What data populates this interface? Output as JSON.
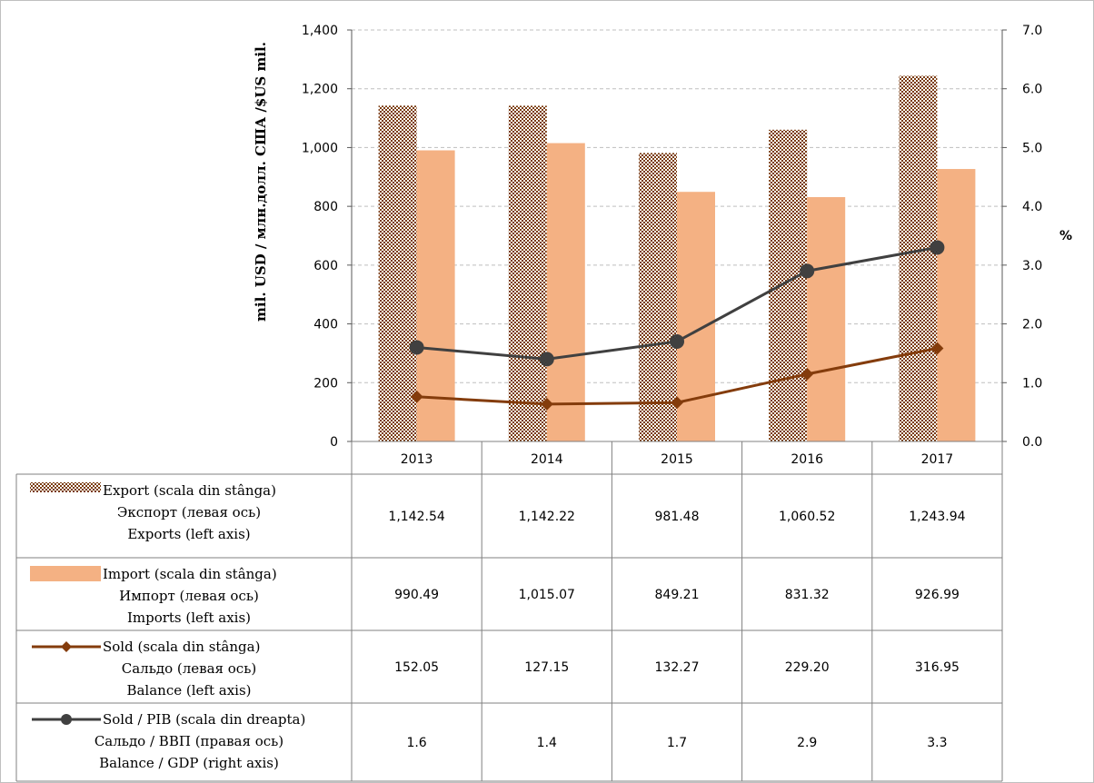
{
  "chart_data": {
    "type": "bar",
    "categories": [
      "2013",
      "2014",
      "2015",
      "2016",
      "2017"
    ],
    "ylabel": "mil. USD / млн.долл. США /$US mil.",
    "y2label": "%",
    "ylim": [
      0,
      1400
    ],
    "y2lim": [
      0.0,
      7.0
    ],
    "yticks": [
      "0",
      "200",
      "400",
      "600",
      "800",
      "1,000",
      "1,200",
      "1,400"
    ],
    "y2ticks": [
      "0.0",
      "1.0",
      "2.0",
      "3.0",
      "4.0",
      "5.0",
      "6.0",
      "7.0"
    ],
    "grid": true,
    "legend": "data-table",
    "series": [
      {
        "name": [
          "Export (scala din stânga)",
          "Экспорт (левая ось)",
          "Exports (left axis)"
        ],
        "type": "bar",
        "axis": "left",
        "color": "#7a3b10",
        "pattern": "checker",
        "values": [
          1142.54,
          1142.22,
          981.48,
          1060.52,
          1243.94
        ],
        "labels": [
          "1,142.54",
          "1,142.22",
          "981.48",
          "1,060.52",
          "1,243.94"
        ]
      },
      {
        "name": [
          "Import (scala din stânga)",
          "Импорт (левая ось)",
          "Imports (left axis)"
        ],
        "type": "bar",
        "axis": "left",
        "color": "#f4b183",
        "values": [
          990.49,
          1015.07,
          849.21,
          831.32,
          926.99
        ],
        "labels": [
          "990.49",
          "1,015.07",
          "849.21",
          "831.32",
          "926.99"
        ]
      },
      {
        "name": [
          "Sold (scala din stânga)",
          "Сальдо (левая ось)",
          "Balance (left axis)"
        ],
        "type": "line",
        "marker": "diamond",
        "axis": "left",
        "color": "#843c0c",
        "values": [
          152.05,
          127.15,
          132.27,
          229.2,
          316.95
        ],
        "labels": [
          "152.05",
          "127.15",
          "132.27",
          "229.20",
          "316.95"
        ]
      },
      {
        "name": [
          "Sold / PIB (scala din dreapta)",
          "Сальдо / ВВП (правая ось)",
          "Balance / GDP (right axis)"
        ],
        "type": "line",
        "marker": "circle",
        "axis": "right",
        "color": "#404040",
        "values": [
          1.6,
          1.4,
          1.7,
          2.9,
          3.3
        ],
        "labels": [
          "1.6",
          "1.4",
          "1.7",
          "2.9",
          "3.3"
        ]
      }
    ]
  }
}
